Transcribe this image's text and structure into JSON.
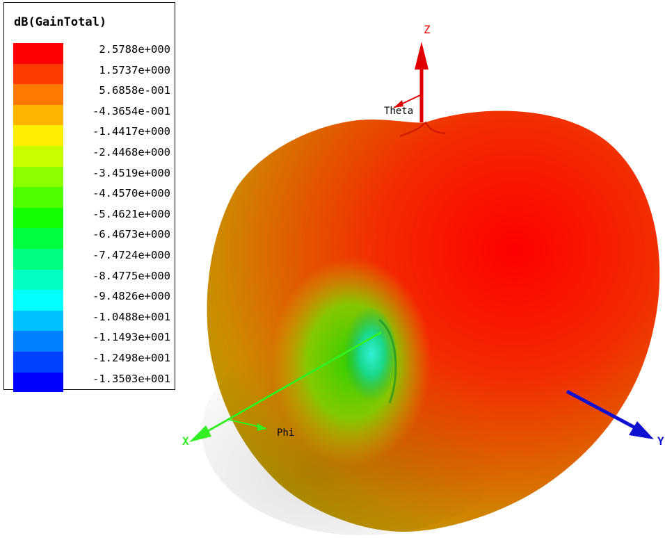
{
  "chart_data": {
    "type": "3d-radiation-pattern",
    "legend": {
      "title": "dB(GainTotal)",
      "ticks": [
        "2.5788e+000",
        "1.5737e+000",
        "5.6858e-001",
        "-4.3654e-001",
        "-1.4417e+000",
        "-2.4468e+000",
        "-3.4519e+000",
        "-4.4570e+000",
        "-5.4621e+000",
        "-6.4673e+000",
        "-7.4724e+000",
        "-8.4775e+000",
        "-9.4826e+000",
        "-1.0488e+001",
        "-1.1493e+001",
        "-1.2498e+001",
        "-1.3503e+001"
      ],
      "colors": [
        "#ff0000",
        "#ff3c00",
        "#ff7800",
        "#ffb400",
        "#ffee00",
        "#c8ff00",
        "#8cff00",
        "#50ff00",
        "#14ff00",
        "#00ff3c",
        "#00ff80",
        "#00ffc0",
        "#00ffff",
        "#00c0ff",
        "#0080ff",
        "#0040ff",
        "#0000ff"
      ],
      "range": [
        -13.503,
        2.5788
      ]
    },
    "axes": {
      "z_label": "Z",
      "x_label": "X",
      "y_label": "Y",
      "theta_label": "Theta",
      "phi_label": "Phi"
    },
    "axis_colors": {
      "z": "#e00000",
      "x": "#33ee22",
      "y": "#1010d0"
    }
  }
}
